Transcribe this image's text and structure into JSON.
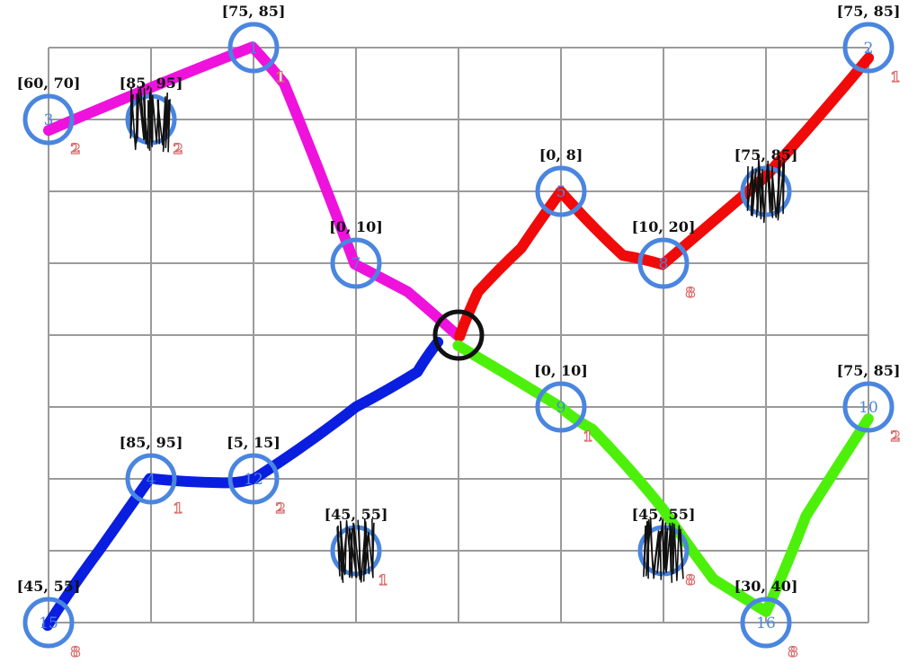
{
  "board": {
    "center": {
      "col": 4,
      "row": 4
    },
    "colors": {
      "grid": "#9a9a9a",
      "node_ring": "#4a86e0",
      "node_number": "#4a86e0",
      "cost": "#d96b6b",
      "center_ring": "#111111",
      "scribble": "#111111"
    }
  },
  "nodes": [
    {
      "id": "1",
      "col": 2,
      "row": 0,
      "range": "[75, 85]",
      "cost": "1"
    },
    {
      "id": "2",
      "col": 8,
      "row": 0,
      "range": "[75, 85]",
      "cost": "1"
    },
    {
      "id": "3",
      "col": 0,
      "row": 1,
      "range": "[60, 70]",
      "cost": "2"
    },
    {
      "id": "",
      "col": 1,
      "row": 1,
      "range": "[85, 95]",
      "cost": "2",
      "scribbled": true
    },
    {
      "id": "5",
      "col": 5,
      "row": 2,
      "range": "[0, 8]",
      "cost": "",
      "range_hidden": false
    },
    {
      "id": "",
      "col": 7,
      "row": 2,
      "range": "[75, 85]",
      "cost": "",
      "scribbled": true
    },
    {
      "id": "7",
      "col": 3,
      "row": 3,
      "range": "[0, 10]",
      "cost": ""
    },
    {
      "id": "8",
      "col": 6,
      "row": 3,
      "range": "[10, 20]",
      "cost": "8"
    },
    {
      "id": "9",
      "col": 5,
      "row": 5,
      "range": "[0, 10]",
      "cost": "1"
    },
    {
      "id": "10",
      "col": 8,
      "row": 5,
      "range": "[75, 85]",
      "cost": "2"
    },
    {
      "id": "4",
      "col": 1,
      "row": 6,
      "range": "[85, 95]",
      "cost": "1"
    },
    {
      "id": "12",
      "col": 2,
      "row": 6,
      "range": "[5, 15]",
      "cost": "2"
    },
    {
      "id": "",
      "col": 3,
      "row": 7,
      "range": "[45, 55]",
      "cost": "1",
      "scribbled": true
    },
    {
      "id": "",
      "col": 6,
      "row": 7,
      "range": "[45, 55]",
      "cost": "8",
      "scribbled": true
    },
    {
      "id": "15",
      "col": 0,
      "row": 8,
      "range": "[45, 55]",
      "cost": "8"
    },
    {
      "id": "16",
      "col": 7,
      "row": 8,
      "range": "[30, 40]",
      "cost": "8"
    }
  ],
  "paths": [
    {
      "name": "magenta-path",
      "color": "#ee12dc",
      "cells": [
        [
          0,
          1.15
        ],
        [
          2,
          0
        ],
        [
          2.3,
          0.5
        ],
        [
          3,
          3
        ],
        [
          3.5,
          3.4
        ],
        [
          4,
          4
        ]
      ]
    },
    {
      "name": "red-path",
      "color": "#f00a0a",
      "cells": [
        [
          4,
          4
        ],
        [
          4.2,
          3.4
        ],
        [
          4.6,
          2.8
        ],
        [
          5,
          2
        ],
        [
          5.6,
          2.9
        ],
        [
          6,
          3
        ],
        [
          7,
          1.8
        ],
        [
          8,
          0.15
        ]
      ]
    },
    {
      "name": "blue-path",
      "color": "#0a1ee0",
      "cells": [
        [
          0,
          8.05
        ],
        [
          0.5,
          7
        ],
        [
          1,
          6
        ],
        [
          1.7,
          6.05
        ],
        [
          2,
          6
        ],
        [
          3,
          5
        ],
        [
          3.6,
          4.5
        ],
        [
          3.8,
          4.1
        ]
      ]
    },
    {
      "name": "green-path",
      "color": "#4df00a",
      "cells": [
        [
          4,
          4.15
        ],
        [
          5,
          5
        ],
        [
          5.3,
          5.3
        ],
        [
          6,
          6.4
        ],
        [
          6.5,
          7.4
        ],
        [
          7,
          7.85
        ],
        [
          7.4,
          6.5
        ],
        [
          8,
          5.15
        ]
      ]
    }
  ]
}
